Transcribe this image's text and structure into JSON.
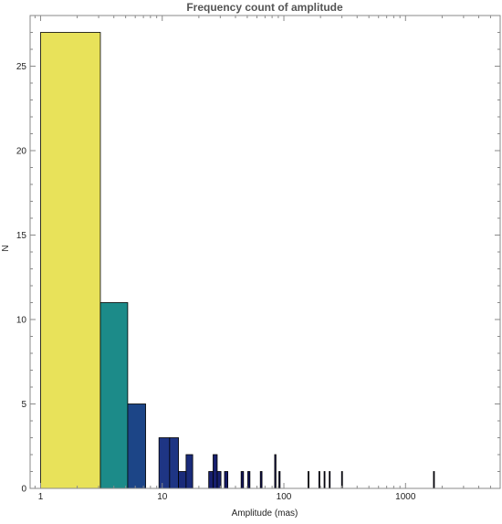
{
  "chart_data": {
    "type": "bar",
    "title": "Frequency count of amplitude",
    "xlabel": "Amplitude (mas)",
    "ylabel": "N",
    "x_scale": "log",
    "xlim": [
      0.82,
      6000
    ],
    "ylim": [
      0,
      28
    ],
    "x_ticks": [
      {
        "value": 1,
        "label": "1"
      },
      {
        "value": 10,
        "label": "10"
      },
      {
        "value": 100,
        "label": "100"
      },
      {
        "value": 1000,
        "label": "1000"
      }
    ],
    "y_ticks": [
      {
        "value": 0,
        "label": "0"
      },
      {
        "value": 5,
        "label": "5"
      },
      {
        "value": 10,
        "label": "10"
      },
      {
        "value": 15,
        "label": "15"
      },
      {
        "value": 20,
        "label": "20"
      },
      {
        "value": 25,
        "label": "25"
      }
    ],
    "bins": [
      {
        "from": 1.0,
        "to": 3.1,
        "count": 27,
        "color": "#e8e25a"
      },
      {
        "from": 3.1,
        "to": 5.2,
        "count": 11,
        "color": "#1c8b89"
      },
      {
        "from": 5.2,
        "to": 7.3,
        "count": 5,
        "color": "#1c4587"
      },
      {
        "from": 9.4,
        "to": 11.5,
        "count": 3,
        "color": "#1e3584"
      },
      {
        "from": 11.5,
        "to": 13.6,
        "count": 3,
        "color": "#1e3584"
      },
      {
        "from": 13.6,
        "to": 15.7,
        "count": 1,
        "color": "#1a2b7a"
      },
      {
        "from": 15.7,
        "to": 17.8,
        "count": 2,
        "color": "#1a2b7a"
      },
      {
        "from": 24.1,
        "to": 26.2,
        "count": 1,
        "color": "#171f6e"
      },
      {
        "from": 26.2,
        "to": 28.3,
        "count": 2,
        "color": "#171f6e"
      },
      {
        "from": 28.3,
        "to": 30.4,
        "count": 1,
        "color": "#171f6e"
      },
      {
        "from": 32.5,
        "to": 34.6,
        "count": 1,
        "color": "#151a66"
      },
      {
        "from": 44.5,
        "to": 46.6,
        "count": 1,
        "color": "#14165e"
      },
      {
        "from": 50.5,
        "to": 52.6,
        "count": 1,
        "color": "#14165e"
      },
      {
        "from": 64.0,
        "to": 66.1,
        "count": 1,
        "color": "#131356"
      },
      {
        "from": 84.0,
        "to": 86.1,
        "count": 2,
        "color": "#12104e"
      },
      {
        "from": 91.0,
        "to": 93.1,
        "count": 1,
        "color": "#12104e"
      },
      {
        "from": 158.0,
        "to": 160.1,
        "count": 1,
        "color": "#100c44"
      },
      {
        "from": 194.0,
        "to": 196.1,
        "count": 1,
        "color": "#100c44"
      },
      {
        "from": 214.0,
        "to": 216.1,
        "count": 1,
        "color": "#100c44"
      },
      {
        "from": 236.0,
        "to": 238.1,
        "count": 1,
        "color": "#100c44"
      },
      {
        "from": 298.0,
        "to": 300.1,
        "count": 1,
        "color": "#0e0a3c"
      },
      {
        "from": 1698.0,
        "to": 1700.1,
        "count": 1,
        "color": "#0c0834"
      }
    ],
    "grid": false
  }
}
